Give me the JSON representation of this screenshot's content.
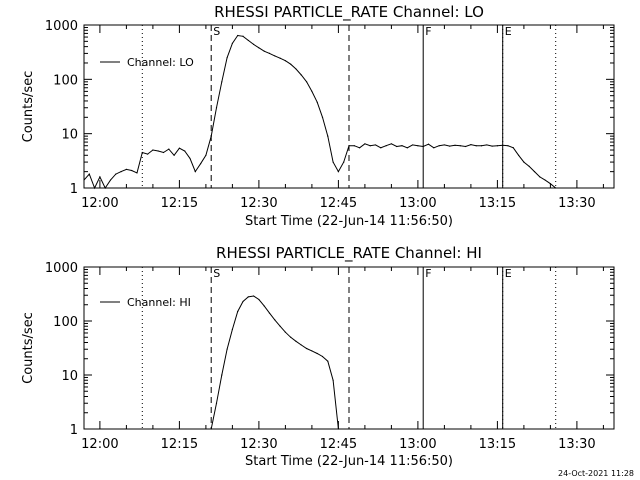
{
  "chart_data": [
    {
      "type": "line",
      "title": "RHESSI PARTICLE_RATE Channel: LO",
      "xlabel": "Start Time (22-Jun-14 11:56:50)",
      "ylabel": "Counts/sec",
      "x_ticks": [
        "12:00",
        "12:15",
        "12:30",
        "12:45",
        "13:00",
        "13:15",
        "13:30"
      ],
      "y_ticks": [
        "1",
        "10",
        "100",
        "1000"
      ],
      "xlim": [
        "11:57",
        "13:37"
      ],
      "ylim": [
        1,
        1000
      ],
      "y_scale": "log",
      "legend": "top-left",
      "legend_entries": [
        "Channel: LO"
      ],
      "event_markers": [
        {
          "label": "S",
          "time": "12:21",
          "style": "dashed"
        },
        {
          "label": "F",
          "time": "13:01",
          "style": "solid"
        },
        {
          "label": "E",
          "time": "13:16",
          "style": "solid"
        }
      ],
      "reference_lines": [
        {
          "time": "12:08",
          "style": "dotted"
        },
        {
          "time": "13:16",
          "style": "dotted"
        },
        {
          "time": "13:26",
          "style": "dotted"
        }
      ],
      "end_marker": {
        "time": "12:47",
        "style": "dashed"
      },
      "series": [
        {
          "name": "Channel: LO",
          "x": [
            "11:57",
            "11:58",
            "11:59",
            "12:00",
            "12:01",
            "12:02",
            "12:03",
            "12:04",
            "12:05",
            "12:06",
            "12:07",
            "12:08",
            "12:09",
            "12:10",
            "12:11",
            "12:12",
            "12:13",
            "12:14",
            "12:15",
            "12:16",
            "12:17",
            "12:18",
            "12:19",
            "12:20",
            "12:21",
            "12:22",
            "12:23",
            "12:24",
            "12:25",
            "12:26",
            "12:27",
            "12:28",
            "12:29",
            "12:30",
            "12:31",
            "12:32",
            "12:33",
            "12:34",
            "12:35",
            "12:36",
            "12:37",
            "12:38",
            "12:39",
            "12:40",
            "12:41",
            "12:42",
            "12:43",
            "12:44",
            "12:45",
            "12:46",
            "12:47",
            "12:48",
            "12:49",
            "12:50",
            "12:51",
            "12:52",
            "12:53",
            "12:54",
            "12:55",
            "12:56",
            "12:57",
            "12:58",
            "12:59",
            "13:00",
            "13:01",
            "13:02",
            "13:03",
            "13:04",
            "13:05",
            "13:06",
            "13:07",
            "13:08",
            "13:09",
            "13:10",
            "13:11",
            "13:12",
            "13:13",
            "13:14",
            "13:15",
            "13:16",
            "13:17",
            "13:18",
            "13:19",
            "13:20",
            "13:21",
            "13:22",
            "13:23",
            "13:24",
            "13:25",
            "13:26"
          ],
          "y": [
            1.4,
            1.8,
            1,
            1.6,
            1,
            1.4,
            1.8,
            2,
            2.2,
            2.1,
            1.9,
            4.5,
            4.2,
            5,
            4.8,
            4.5,
            5.2,
            4,
            5.4,
            4.8,
            3.5,
            2,
            2.8,
            4,
            9,
            30,
            90,
            250,
            460,
            640,
            620,
            520,
            440,
            380,
            330,
            300,
            270,
            245,
            220,
            190,
            155,
            120,
            90,
            60,
            38,
            20,
            9,
            3,
            2,
            3,
            6,
            6,
            5.5,
            6.5,
            6,
            6.2,
            5.5,
            6,
            6.5,
            5.8,
            6,
            5.5,
            6.2,
            6,
            5.8,
            6.4,
            5.5,
            6,
            6.2,
            5.9,
            6.1,
            6,
            5.8,
            6.3,
            6,
            6,
            6.2,
            5.9,
            6,
            6.1,
            6,
            5.5,
            4,
            3,
            2.5,
            2,
            1.6,
            1.4,
            1.2,
            1
          ]
        }
      ]
    },
    {
      "type": "line",
      "title": "RHESSI PARTICLE_RATE Channel: HI",
      "xlabel": "Start Time (22-Jun-14 11:56:50)",
      "ylabel": "Counts/sec",
      "x_ticks": [
        "12:00",
        "12:15",
        "12:30",
        "12:45",
        "13:00",
        "13:15",
        "13:30"
      ],
      "y_ticks": [
        "1",
        "10",
        "100",
        "1000"
      ],
      "xlim": [
        "11:57",
        "13:37"
      ],
      "ylim": [
        1,
        1000
      ],
      "y_scale": "log",
      "legend": "top-left",
      "legend_entries": [
        "Channel: HI"
      ],
      "event_markers": [
        {
          "label": "S",
          "time": "12:21",
          "style": "dashed"
        },
        {
          "label": "F",
          "time": "13:01",
          "style": "solid"
        },
        {
          "label": "E",
          "time": "13:16",
          "style": "solid"
        }
      ],
      "reference_lines": [
        {
          "time": "12:08",
          "style": "dotted"
        },
        {
          "time": "13:16",
          "style": "dotted"
        },
        {
          "time": "13:26",
          "style": "dotted"
        }
      ],
      "end_marker": {
        "time": "12:47",
        "style": "dashed"
      },
      "series": [
        {
          "name": "Channel: HI",
          "x": [
            "12:21",
            "12:22",
            "12:23",
            "12:24",
            "12:25",
            "12:26",
            "12:27",
            "12:28",
            "12:29",
            "12:30",
            "12:31",
            "12:32",
            "12:33",
            "12:34",
            "12:35",
            "12:36",
            "12:37",
            "12:38",
            "12:39",
            "12:40",
            "12:41",
            "12:42",
            "12:43",
            "12:44",
            "12:45"
          ],
          "y": [
            1,
            3,
            10,
            30,
            70,
            150,
            230,
            280,
            290,
            250,
            190,
            140,
            105,
            80,
            62,
            50,
            42,
            36,
            31,
            28,
            25,
            22,
            18,
            8,
            1
          ]
        }
      ]
    }
  ],
  "footer": {
    "timestamp": "24-Oct-2021 11:28"
  }
}
